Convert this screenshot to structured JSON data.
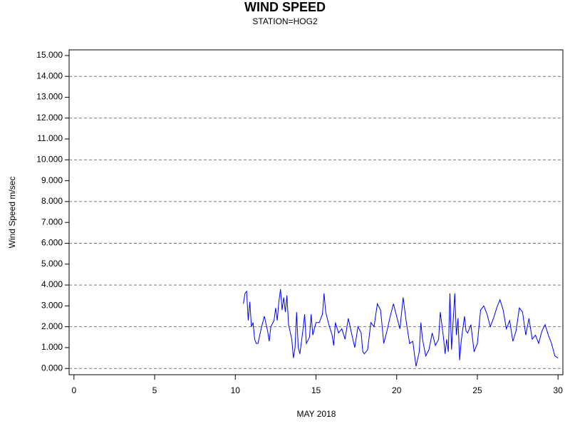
{
  "chart_data": {
    "type": "line",
    "title": "WIND SPEED",
    "subtitle": "STATION=HOG2",
    "x_label": "MAY 2018",
    "y_label": "Wind Speed m/sec",
    "color": "#0000ff",
    "grid": true,
    "xlim": [
      -0.3,
      30.3
    ],
    "ylim": [
      -0.3,
      15.27
    ],
    "xticks": [
      0,
      5,
      10,
      15,
      20,
      25,
      30
    ],
    "yticks": [
      {
        "value": 0,
        "label": "0.000"
      },
      {
        "value": 1,
        "label": "1.000"
      },
      {
        "value": 2,
        "label": "2.000"
      },
      {
        "value": 3,
        "label": "3.000"
      },
      {
        "value": 4,
        "label": "4.000"
      },
      {
        "value": 5,
        "label": "5.000"
      },
      {
        "value": 6,
        "label": "6.000"
      },
      {
        "value": 7,
        "label": "7.000"
      },
      {
        "value": 8,
        "label": "8.000"
      },
      {
        "value": 9,
        "label": "9.000"
      },
      {
        "value": 10,
        "label": "10.000"
      },
      {
        "value": 11,
        "label": "11.000"
      },
      {
        "value": 12,
        "label": "12.000"
      },
      {
        "value": 13,
        "label": "13.000"
      },
      {
        "value": 14,
        "label": "14.000"
      },
      {
        "value": 15,
        "label": "15.000"
      }
    ],
    "x": [
      10.5,
      10.6,
      10.7,
      10.8,
      10.9,
      11.0,
      11.1,
      11.2,
      11.3,
      11.4,
      11.6,
      11.8,
      12.0,
      12.1,
      12.2,
      12.4,
      12.5,
      12.6,
      12.7,
      12.8,
      12.9,
      13.0,
      13.1,
      13.2,
      13.3,
      13.5,
      13.6,
      13.7,
      13.8,
      13.9,
      14.0,
      14.2,
      14.3,
      14.4,
      14.6,
      14.7,
      14.8,
      15.0,
      15.2,
      15.4,
      15.5,
      15.6,
      15.8,
      16.0,
      16.1,
      16.2,
      16.4,
      16.6,
      16.8,
      17.0,
      17.2,
      17.4,
      17.6,
      17.8,
      17.9,
      18.0,
      18.2,
      18.4,
      18.6,
      18.8,
      19.0,
      19.1,
      19.2,
      19.4,
      19.6,
      19.8,
      20.0,
      20.2,
      20.4,
      20.6,
      20.8,
      21.0,
      21.1,
      21.2,
      21.4,
      21.5,
      21.6,
      21.8,
      22.0,
      22.2,
      22.4,
      22.6,
      22.7,
      22.9,
      23.0,
      23.1,
      23.2,
      23.3,
      23.4,
      23.6,
      23.7,
      23.8,
      23.9,
      24.0,
      24.2,
      24.3,
      24.4,
      24.6,
      24.8,
      25.0,
      25.2,
      25.4,
      25.6,
      25.8,
      26.0,
      26.2,
      26.4,
      26.6,
      26.8,
      27.0,
      27.2,
      27.4,
      27.6,
      27.8,
      28.0,
      28.2,
      28.4,
      28.6,
      28.8,
      29.0,
      29.2,
      29.4,
      29.6,
      29.8,
      30.0
    ],
    "values": [
      3.1,
      3.6,
      3.7,
      2.3,
      3.2,
      2.0,
      2.2,
      1.4,
      1.2,
      1.2,
      1.9,
      2.5,
      1.8,
      1.3,
      2.0,
      2.3,
      2.9,
      2.3,
      3.2,
      3.8,
      2.8,
      3.4,
      2.7,
      3.5,
      2.1,
      1.4,
      0.5,
      1.0,
      2.7,
      1.0,
      0.7,
      1.9,
      2.6,
      1.2,
      1.5,
      2.6,
      1.6,
      2.2,
      2.2,
      2.6,
      3.6,
      2.7,
      2.1,
      1.6,
      1.1,
      2.2,
      1.7,
      1.9,
      1.4,
      2.4,
      1.7,
      1.0,
      2.0,
      1.7,
      0.8,
      0.7,
      0.9,
      2.2,
      2.0,
      3.1,
      2.8,
      2.0,
      1.2,
      1.8,
      2.5,
      3.1,
      2.5,
      1.9,
      3.4,
      2.2,
      1.2,
      1.3,
      0.7,
      0.1,
      0.8,
      2.2,
      1.4,
      0.6,
      0.9,
      1.7,
      1.1,
      1.4,
      2.7,
      1.5,
      0.7,
      1.4,
      0.8,
      3.6,
      0.9,
      3.6,
      1.6,
      2.4,
      0.4,
      1.3,
      2.5,
      1.8,
      1.7,
      2.1,
      0.8,
      1.2,
      2.8,
      3.0,
      2.6,
      2.0,
      2.4,
      2.9,
      3.3,
      2.8,
      1.9,
      2.3,
      1.3,
      1.8,
      2.9,
      2.7,
      1.6,
      2.4,
      1.4,
      1.6,
      1.2,
      1.8,
      2.1,
      1.6,
      1.2,
      0.6,
      0.5
    ]
  }
}
